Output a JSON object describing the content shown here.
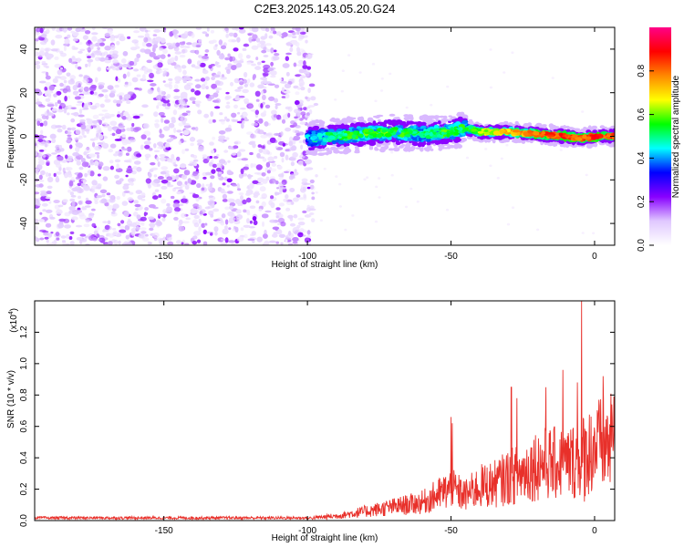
{
  "figure": {
    "title": "C2E3.2025.143.05.20.G24"
  },
  "chart_data": [
    {
      "type": "heatmap",
      "xlabel": "Height of straight line (km)",
      "ylabel": "Frequency (Hz)",
      "xlim": [
        -195,
        7
      ],
      "ylim": [
        -50,
        50
      ],
      "xticks": [
        -150,
        -100,
        -50,
        0
      ],
      "yticks": [
        -40,
        -20,
        0,
        20,
        40
      ],
      "colorbar": {
        "label": "Normalized spectral amplitude",
        "range": [
          0,
          1
        ],
        "ticks": [
          "0.0",
          "0.2",
          "0.4",
          "0.6",
          "0.8"
        ],
        "colors": [
          "#ffffff",
          "#e0c8ff",
          "#8800ff",
          "#0000ff",
          "#00ffff",
          "#00ff00",
          "#ffff00",
          "#ff8800",
          "#ff0000",
          "#ff0088"
        ]
      },
      "noise_region": {
        "x": [
          -195,
          -98
        ],
        "y": [
          -50,
          50
        ]
      },
      "signal_track": {
        "x": [
          -100,
          -90,
          -80,
          -70,
          -60,
          -50,
          -45,
          -40,
          -30,
          -20,
          -10,
          -5,
          0,
          7
        ],
        "freq": [
          -1,
          0,
          1,
          2,
          1,
          2,
          4,
          2,
          2,
          1,
          0,
          -1,
          0,
          0
        ],
        "peak": [
          0.35,
          0.45,
          0.5,
          0.5,
          0.45,
          0.5,
          0.45,
          0.55,
          0.65,
          0.75,
          0.8,
          0.75,
          0.8,
          0.75
        ]
      }
    },
    {
      "type": "line",
      "xlabel": "Height of straight line (km)",
      "ylabel": "SNR (10 * v/v)",
      "scale_label": "(x10",
      "scale_exp": "4",
      "scale_suffix": ")",
      "xlim": [
        -195,
        7
      ],
      "ylim": [
        0,
        1.4
      ],
      "xticks": [
        -150,
        -100,
        -50,
        0
      ],
      "yticks": [
        "0.0",
        "0.2",
        "0.4",
        "0.6",
        "0.8",
        "1.0",
        "1.2"
      ],
      "series": [
        {
          "color": "#e8302a",
          "envelope_x": [
            -195,
            -100,
            -90,
            -80,
            -70,
            -60,
            -50,
            -45,
            -40,
            -35,
            -30,
            -25,
            -20,
            -15,
            -10,
            -5,
            0,
            7
          ],
          "envelope_y": [
            0.02,
            0.02,
            0.04,
            0.08,
            0.12,
            0.16,
            0.28,
            0.22,
            0.3,
            0.32,
            0.38,
            0.42,
            0.5,
            0.5,
            0.5,
            0.55,
            0.65,
            0.68
          ],
          "peaks": [
            {
              "x": -50,
              "y": 0.66
            },
            {
              "x": -49.5,
              "y": 0.62
            },
            {
              "x": -29,
              "y": 0.85
            },
            {
              "x": -27,
              "y": 0.78
            },
            {
              "x": -17,
              "y": 0.85
            },
            {
              "x": -11,
              "y": 0.96
            },
            {
              "x": -6,
              "y": 0.88
            },
            {
              "x": -4.5,
              "y": 1.42
            },
            {
              "x": -3.5,
              "y": 0.12
            },
            {
              "x": 3,
              "y": 0.92
            },
            {
              "x": 6,
              "y": 0.74
            }
          ]
        }
      ]
    }
  ]
}
